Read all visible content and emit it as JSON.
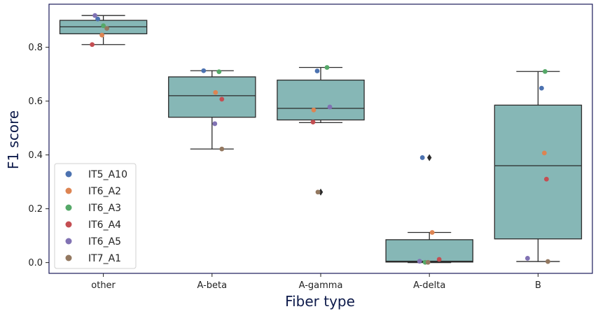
{
  "chart_data": {
    "type": "box",
    "xlabel": "Fiber type",
    "ylabel": "F1 score",
    "categories": [
      "other",
      "A-beta",
      "A-gamma",
      "A-delta",
      "B"
    ],
    "ylim": [
      -0.04,
      0.96
    ],
    "yticks": [
      0.0,
      0.2,
      0.4,
      0.6,
      0.8
    ],
    "ytick_labels": [
      "0.0",
      "0.2",
      "0.4",
      "0.6",
      "0.8"
    ],
    "grid": false,
    "legend_position": "bottom-left",
    "box_color": "#86b7b6",
    "frame_color": "#1a1a5a",
    "boxes": [
      {
        "category": "other",
        "q1": 0.85,
        "median": 0.876,
        "q3": 0.9,
        "whisker_low": 0.81,
        "whisker_high": 0.918,
        "outliers": []
      },
      {
        "category": "A-beta",
        "q1": 0.54,
        "median": 0.62,
        "q3": 0.69,
        "whisker_low": 0.422,
        "whisker_high": 0.713,
        "outliers": []
      },
      {
        "category": "A-gamma",
        "q1": 0.53,
        "median": 0.573,
        "q3": 0.678,
        "whisker_low": 0.52,
        "whisker_high": 0.725,
        "outliers": [
          0.262
        ]
      },
      {
        "category": "A-delta",
        "q1": 0.002,
        "median": 0.005,
        "q3": 0.085,
        "whisker_low": 0.0,
        "whisker_high": 0.112,
        "outliers": [
          0.39
        ]
      },
      {
        "category": "B",
        "q1": 0.088,
        "median": 0.36,
        "q3": 0.585,
        "whisker_low": 0.004,
        "whisker_high": 0.71,
        "outliers": []
      }
    ],
    "series": [
      {
        "name": "IT5_A10",
        "color": "#4c72b0",
        "values": [
          0.905,
          0.713,
          0.712,
          0.39,
          0.648
        ]
      },
      {
        "name": "IT6_A2",
        "color": "#dd8452",
        "values": [
          0.845,
          0.632,
          0.567,
          0.112,
          0.407
        ]
      },
      {
        "name": "IT6_A3",
        "color": "#55a868",
        "values": [
          0.88,
          0.709,
          0.725,
          0.001,
          0.71
        ]
      },
      {
        "name": "IT6_A4",
        "color": "#c44e52",
        "values": [
          0.81,
          0.607,
          0.522,
          0.012,
          0.31
        ]
      },
      {
        "name": "IT6_A5",
        "color": "#8172b3",
        "values": [
          0.918,
          0.516,
          0.578,
          0.005,
          0.016
        ]
      },
      {
        "name": "IT7_A1",
        "color": "#937860",
        "values": [
          0.87,
          0.422,
          0.262,
          0.001,
          0.004
        ]
      }
    ]
  }
}
